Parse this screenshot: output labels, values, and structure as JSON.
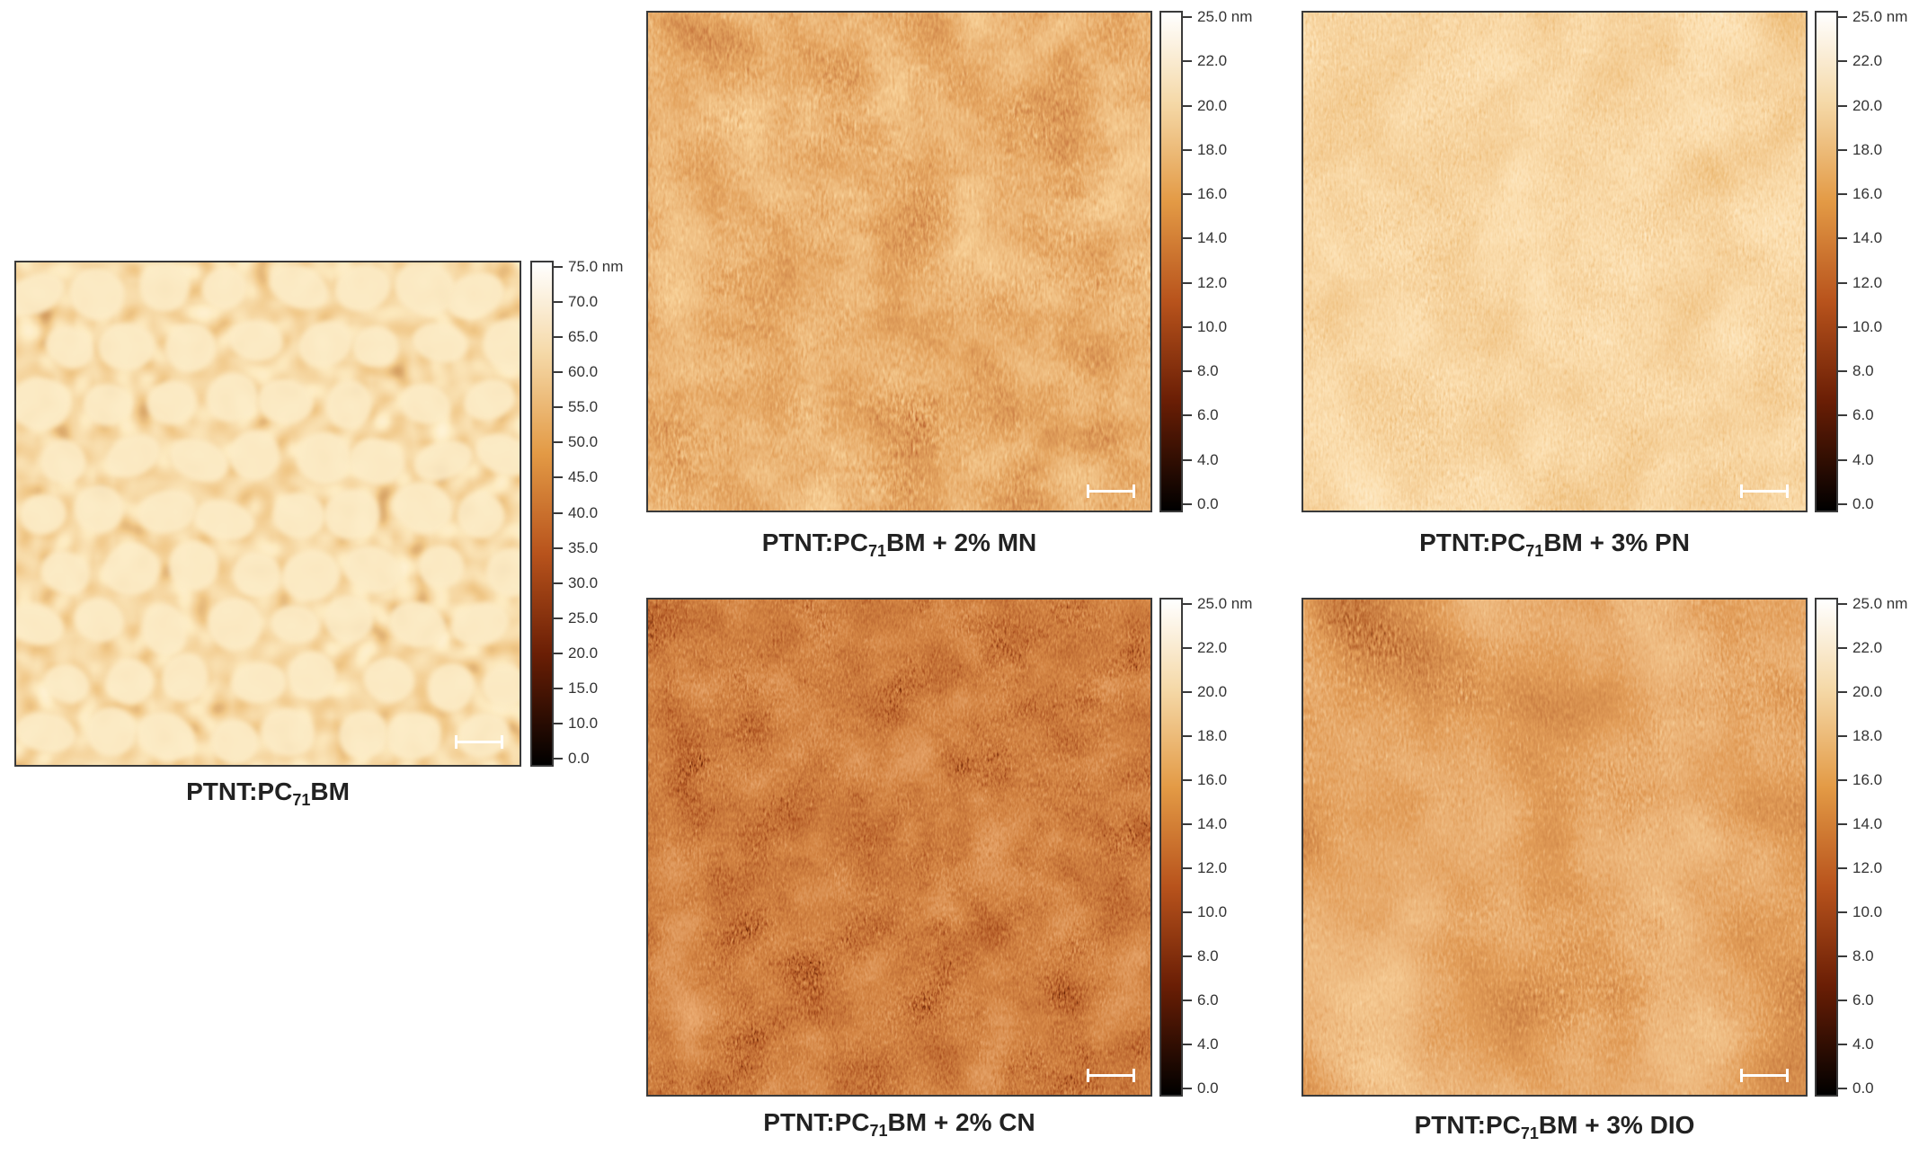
{
  "panels": [
    {
      "id": "plain",
      "caption": {
        "pre": "PTNT:PC",
        "sub": "71",
        "post": "BM"
      },
      "scale_labels": [
        "75.0 nm",
        "70.0",
        "65.0",
        "60.0",
        "55.0",
        "50.0",
        "45.0",
        "40.0",
        "35.0",
        "30.0",
        "25.0",
        "20.0",
        "15.0",
        "10.0",
        "0.0"
      ],
      "texture": "grains"
    },
    {
      "id": "mn",
      "caption": {
        "pre": "PTNT:PC",
        "sub": "71",
        "post": "BM + 2% MN"
      },
      "scale_labels": [
        "25.0 nm",
        "22.0",
        "20.0",
        "18.0",
        "16.0",
        "14.0",
        "12.0",
        "10.0",
        "8.0",
        "6.0",
        "4.0",
        "0.0"
      ],
      "texture": "fibrous-medium"
    },
    {
      "id": "pn",
      "caption": {
        "pre": "PTNT:PC",
        "sub": "71",
        "post": "BM + 3% PN"
      },
      "scale_labels": [
        "25.0 nm",
        "22.0",
        "20.0",
        "18.0",
        "16.0",
        "14.0",
        "12.0",
        "10.0",
        "8.0",
        "6.0",
        "4.0",
        "0.0"
      ],
      "texture": "fibrous-light"
    },
    {
      "id": "cn",
      "caption": {
        "pre": "PTNT:PC",
        "sub": "71",
        "post": "BM + 2% CN"
      },
      "scale_labels": [
        "25.0 nm",
        "22.0",
        "20.0",
        "18.0",
        "16.0",
        "14.0",
        "12.0",
        "10.0",
        "8.0",
        "6.0",
        "4.0",
        "0.0"
      ],
      "texture": "fibrous-dark"
    },
    {
      "id": "dio",
      "caption": {
        "pre": "PTNT:PC",
        "sub": "71",
        "post": "BM + 3% DIO"
      },
      "scale_labels": [
        "25.0 nm",
        "22.0",
        "20.0",
        "18.0",
        "16.0",
        "14.0",
        "12.0",
        "10.0",
        "8.0",
        "6.0",
        "4.0",
        "0.0"
      ],
      "texture": "fibrous-patchy"
    }
  ],
  "colors": {
    "colormap_top": "#fffdf7",
    "colormap_mid": "#e8a24a",
    "colormap_low": "#a83c10",
    "colormap_bottom": "#000000",
    "frame": "#3a3a3a"
  }
}
